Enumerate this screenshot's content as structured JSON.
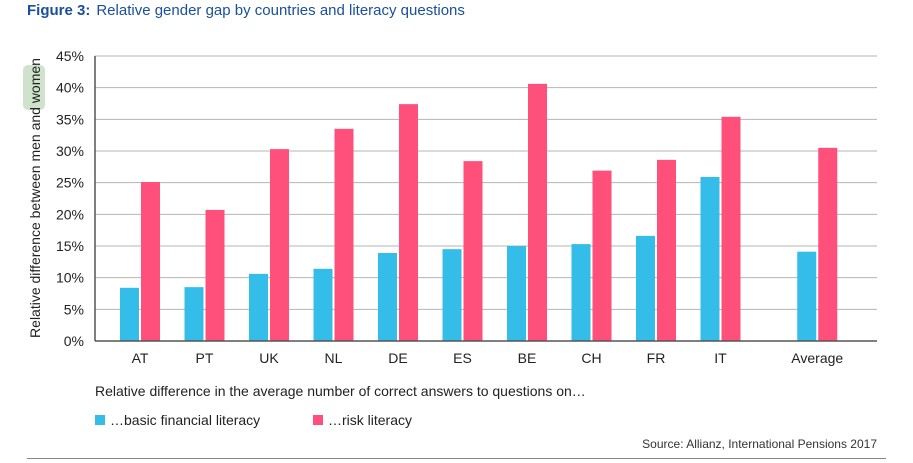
{
  "figure_label": "Figure 3:",
  "chart_data": {
    "type": "bar",
    "title": "Relative gender gap by countries and literacy questions",
    "ylabel": "Relative difference between men and women",
    "xlabel": "Relative difference in the average number of correct answers to questions on…",
    "ylim": [
      0,
      45
    ],
    "yticks": [
      0,
      5,
      10,
      15,
      20,
      25,
      30,
      35,
      40,
      45
    ],
    "ytick_labels": [
      "0%",
      "5%",
      "10%",
      "15%",
      "20%",
      "25%",
      "30%",
      "35%",
      "40%",
      "45%"
    ],
    "grid": true,
    "categories": [
      "AT",
      "PT",
      "UK",
      "NL",
      "DE",
      "ES",
      "BE",
      "CH",
      "FR",
      "IT",
      "Average"
    ],
    "series": [
      {
        "name": "…basic financial literacy",
        "color": "#33bde8",
        "values": [
          8.4,
          8.5,
          10.6,
          11.4,
          13.9,
          14.5,
          15.0,
          15.3,
          16.6,
          25.9,
          14.1
        ]
      },
      {
        "name": "…risk literacy",
        "color": "#ff4f7b",
        "values": [
          25.1,
          20.7,
          30.3,
          33.5,
          37.4,
          28.4,
          40.6,
          26.9,
          28.6,
          35.4,
          30.5
        ]
      }
    ],
    "legend_position": "bottom-left",
    "source": "Source: Allianz, International Pensions 2017"
  }
}
